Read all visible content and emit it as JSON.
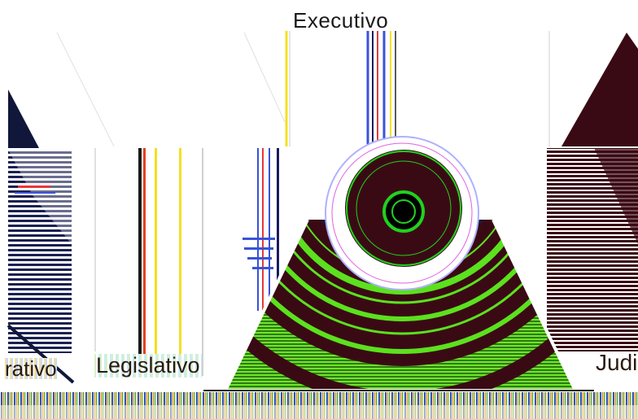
{
  "labels": {
    "top": "Executivo",
    "left_partial": "rativo",
    "bottom_center": "Legislativo",
    "right_partial": "Judi"
  },
  "colors": {
    "dark_navy": "#10173a",
    "dark_maroon": "#3a0a14",
    "lime": "#5be11e",
    "green": "#1fd21f",
    "white": "#ffffff"
  }
}
